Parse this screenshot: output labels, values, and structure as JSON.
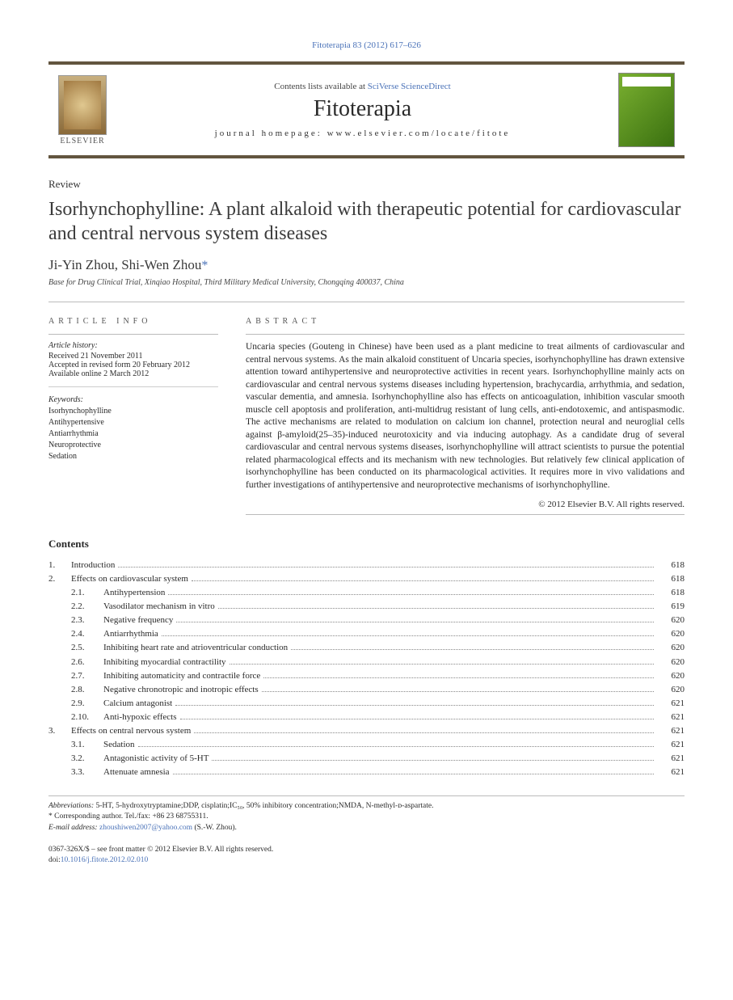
{
  "top_citation": "Fitoterapia 83 (2012) 617–626",
  "header": {
    "contents_prefix": "Contents lists available at ",
    "contents_link": "SciVerse ScienceDirect",
    "journal": "Fitoterapia",
    "homepage_prefix": "journal homepage: ",
    "homepage": "www.elsevier.com/locate/fitote",
    "publisher": "ELSEVIER"
  },
  "article_type": "Review",
  "title": "Isorhynchophylline: A plant alkaloid with therapeutic potential for cardiovascular and central nervous system diseases",
  "authors": "Ji-Yin Zhou, Shi-Wen Zhou",
  "corr_star": "*",
  "affiliation": "Base for Drug Clinical Trial, Xinqiao Hospital, Third Military Medical University, Chongqing 400037, China",
  "info": {
    "heading": "ARTICLE INFO",
    "history_label": "Article history:",
    "received": "Received 21 November 2011",
    "accepted": "Accepted in revised form 20 February 2012",
    "online": "Available online 2 March 2012",
    "keywords_label": "Keywords:",
    "keywords": [
      "Isorhynchophylline",
      "Antihypertensive",
      "Antiarrhythmia",
      "Neuroprotective",
      "Sedation"
    ]
  },
  "abstract": {
    "heading": "ABSTRACT",
    "text": "Uncaria species (Gouteng in Chinese) have been used as a plant medicine to treat ailments of cardiovascular and central nervous systems. As the main alkaloid constituent of Uncaria species, isorhynchophylline has drawn extensive attention toward antihypertensive and neuroprotective activities in recent years. Isorhynchophylline mainly acts on cardiovascular and central nervous systems diseases including hypertension, brachycardia, arrhythmia, and sedation, vascular dementia, and amnesia. Isorhynchophylline also has effects on anticoagulation, inhibition vascular smooth muscle cell apoptosis and proliferation, anti-multidrug resistant of lung cells, anti-endotoxemic, and antispasmodic. The active mechanisms are related to modulation on calcium ion channel, protection neural and neuroglial cells against β-amyloid(25–35)-induced neurotoxicity and via inducing autophagy. As a candidate drug of several cardiovascular and central nervous systems diseases, isorhynchophylline will attract scientists to pursue the potential related pharmacological effects and its mechanism with new technologies. But relatively few clinical application of isorhynchophylline has been conducted on its pharmacological activities. It requires more in vivo validations and further investigations of antihypertensive and neuroprotective mechanisms of isorhynchophylline.",
    "copyright": "© 2012 Elsevier B.V. All rights reserved."
  },
  "contents": {
    "heading": "Contents",
    "items": [
      {
        "num": "1.",
        "label": "Introduction",
        "page": "618"
      },
      {
        "num": "2.",
        "label": "Effects on cardiovascular system",
        "page": "618"
      },
      {
        "sub": "2.1.",
        "label": "Antihypertension",
        "page": "618"
      },
      {
        "sub": "2.2.",
        "label": "Vasodilator mechanism in vitro",
        "page": "619"
      },
      {
        "sub": "2.3.",
        "label": "Negative frequency",
        "page": "620"
      },
      {
        "sub": "2.4.",
        "label": "Antiarrhythmia",
        "page": "620"
      },
      {
        "sub": "2.5.",
        "label": "Inhibiting heart rate and atrioventricular conduction",
        "page": "620"
      },
      {
        "sub": "2.6.",
        "label": "Inhibiting myocardial contractility",
        "page": "620"
      },
      {
        "sub": "2.7.",
        "label": "Inhibiting automaticity and contractile force",
        "page": "620"
      },
      {
        "sub": "2.8.",
        "label": "Negative chronotropic and inotropic effects",
        "page": "620"
      },
      {
        "sub": "2.9.",
        "label": "Calcium antagonist",
        "page": "621"
      },
      {
        "sub": "2.10.",
        "label": "Anti-hypoxic effects",
        "page": "621"
      },
      {
        "num": "3.",
        "label": "Effects on central nervous system",
        "page": "621"
      },
      {
        "sub": "3.1.",
        "label": "Sedation",
        "page": "621"
      },
      {
        "sub": "3.2.",
        "label": "Antagonistic activity of 5-HT",
        "page": "621"
      },
      {
        "sub": "3.3.",
        "label": "Attenuate amnesia",
        "page": "621"
      }
    ]
  },
  "footnotes": {
    "abbrev_label": "Abbreviations:",
    "abbrev_text": " 5-HT, 5-hydroxytryptamine;DDP, cisplatin;IC₅₀, 50% inhibitory concentration;NMDA, N-methyl-ᴅ-aspartate.",
    "corr_label": "* Corresponding author. Tel./fax: ",
    "corr_value": "+86 23 68755311.",
    "email_label": "E-mail address: ",
    "email": "zhoushiwen2007@yahoo.com",
    "email_suffix": " (S.-W. Zhou)."
  },
  "bottom": {
    "line1": "0367-326X/$ – see front matter © 2012 Elsevier B.V. All rights reserved.",
    "doi_prefix": "doi:",
    "doi": "10.1016/j.fitote.2012.02.010"
  },
  "colors": {
    "link": "#4a72b8",
    "rule": "#62553f",
    "text": "#2a2a2a"
  }
}
